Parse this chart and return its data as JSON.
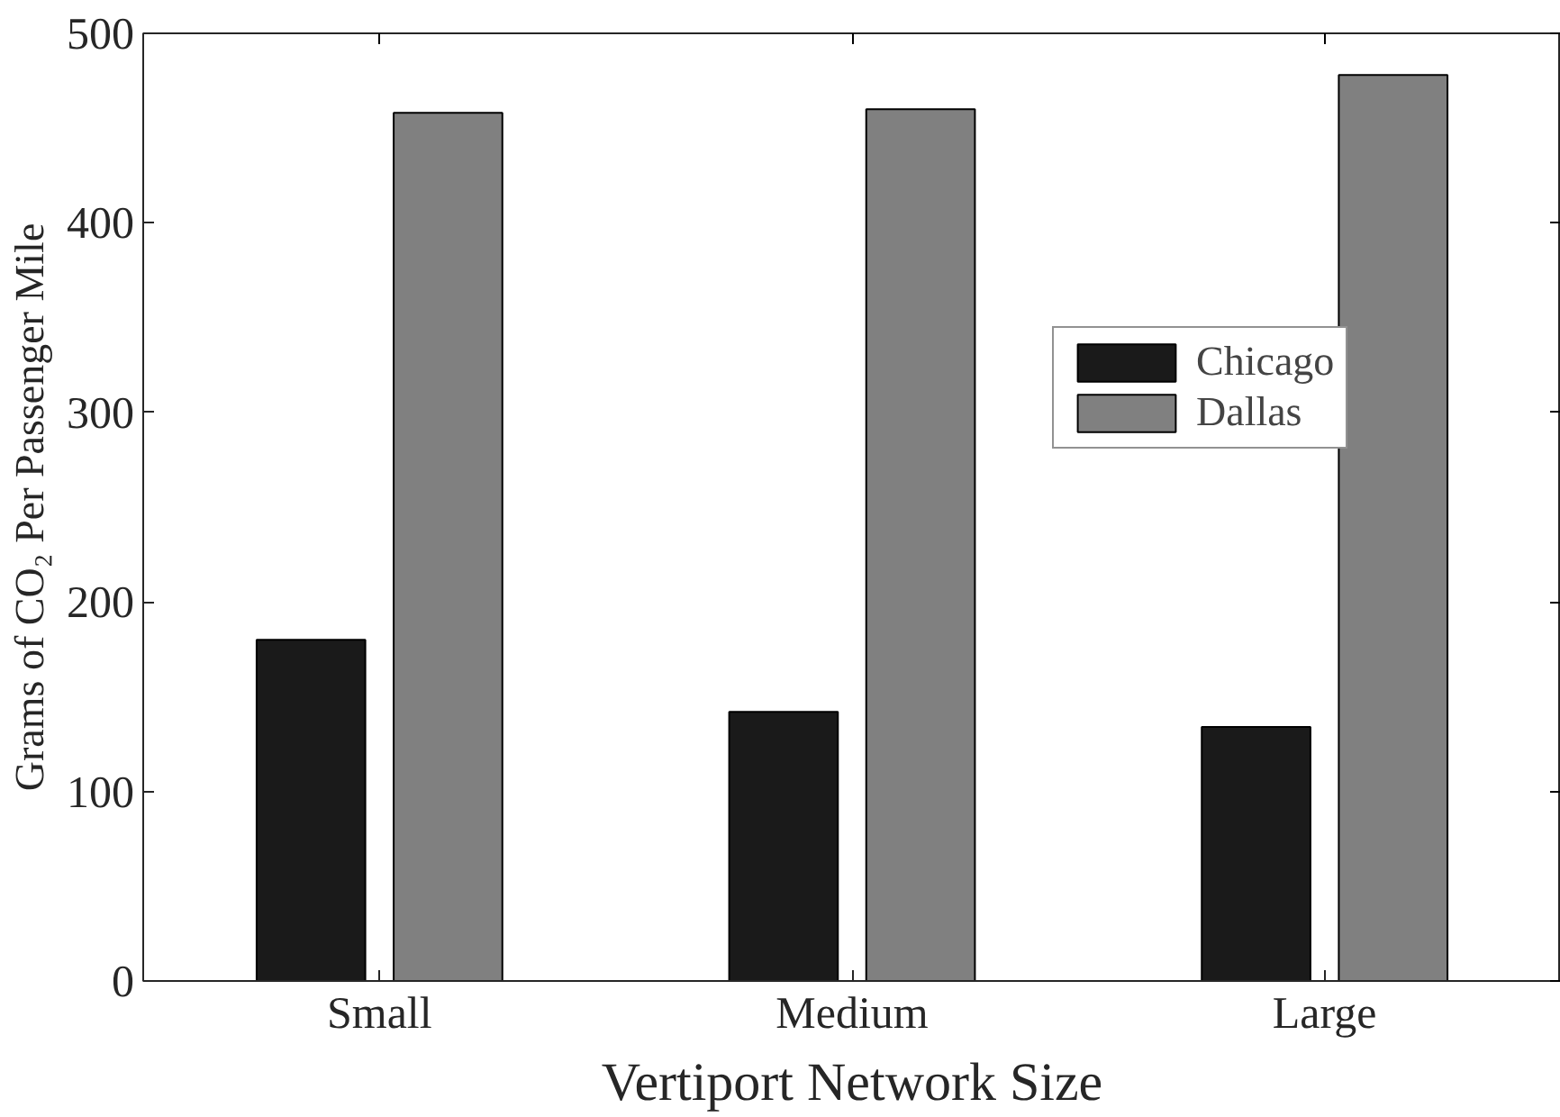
{
  "chart_data": {
    "type": "bar",
    "xlabel": "Vertiport Network Size",
    "ylabel": "Grams of CO₂ Per Passenger Mile",
    "categories": [
      "Small",
      "Medium",
      "Large"
    ],
    "series": [
      {
        "name": "Chicago",
        "color": "#1a1a1a",
        "values": [
          180,
          142,
          134
        ]
      },
      {
        "name": "Dallas",
        "color": "#808080",
        "values": [
          458,
          460,
          478
        ]
      }
    ],
    "ylim": [
      0,
      500
    ],
    "yticks": [
      0,
      100,
      200,
      300,
      400,
      500
    ],
    "grid": false,
    "legend": "top right"
  }
}
